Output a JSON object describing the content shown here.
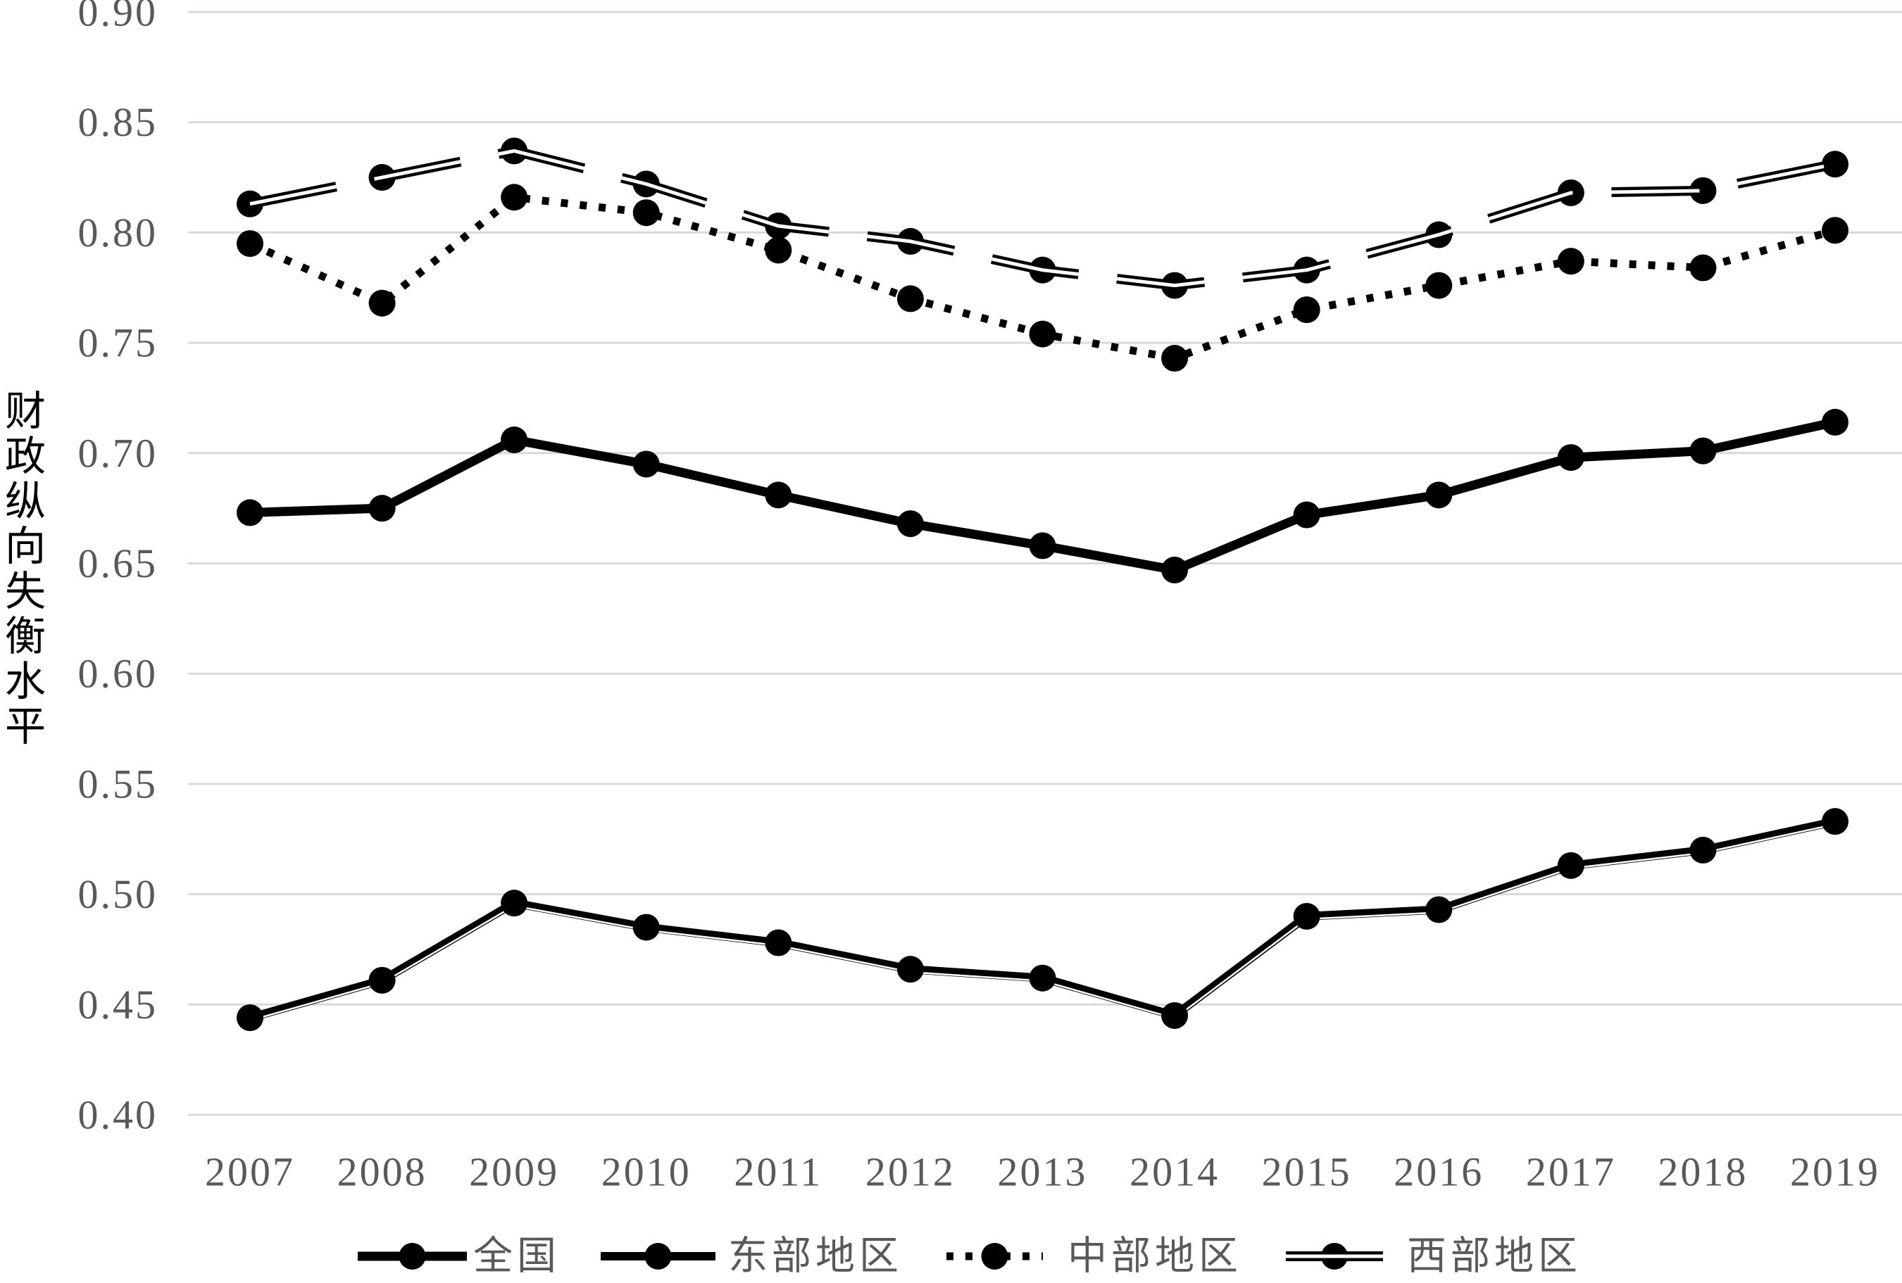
{
  "chart_data": {
    "type": "line",
    "categories": [
      "2007",
      "2008",
      "2009",
      "2010",
      "2011",
      "2012",
      "2013",
      "2014",
      "2015",
      "2016",
      "2017",
      "2018",
      "2019"
    ],
    "ylabel": "财政纵向失衡水平",
    "ylim": [
      0.4,
      0.9
    ],
    "yticks": [
      "0.40",
      "0.45",
      "0.50",
      "0.55",
      "0.60",
      "0.65",
      "0.70",
      "0.75",
      "0.80",
      "0.85",
      "0.90"
    ],
    "grid": true,
    "legend_position": "bottom",
    "series": [
      {
        "name": "全国",
        "color": "#000000",
        "values": [
          0.673,
          0.675,
          0.706,
          0.695,
          0.681,
          0.668,
          0.658,
          0.647,
          0.672,
          0.681,
          0.698,
          0.701,
          0.714
        ]
      },
      {
        "name": "东部地区",
        "color": "#000000",
        "values": [
          0.444,
          0.461,
          0.496,
          0.485,
          0.478,
          0.466,
          0.462,
          0.445,
          0.49,
          0.493,
          0.513,
          0.52,
          0.533
        ]
      },
      {
        "name": "中部地区",
        "color": "#000000",
        "values": [
          0.795,
          0.768,
          0.816,
          0.809,
          0.792,
          0.77,
          0.754,
          0.743,
          0.765,
          0.776,
          0.787,
          0.784,
          0.801
        ]
      },
      {
        "name": "西部地区",
        "color": "#000000",
        "values": [
          0.813,
          0.825,
          0.837,
          0.822,
          0.803,
          0.796,
          0.783,
          0.776,
          0.783,
          0.799,
          0.818,
          0.819,
          0.831
        ]
      }
    ]
  },
  "colors": {
    "tick_text": "#595959",
    "legend_text": "#595959",
    "ylabel_text": "#000000",
    "grid": "#d9d9d9"
  }
}
